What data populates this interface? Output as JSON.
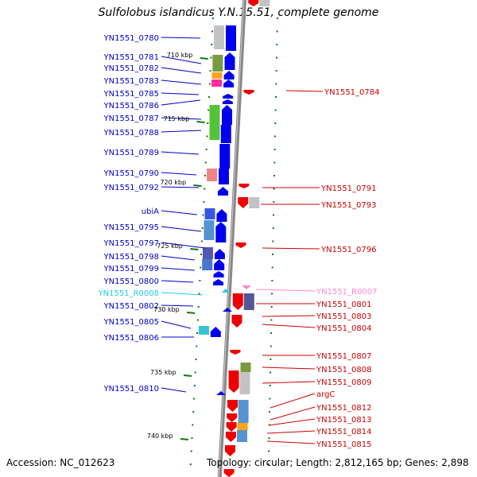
{
  "title": "Sulfolobus islandicus Y.N.15.51, complete genome",
  "footer": {
    "accession": "Accession: NC_012623",
    "topology": "Topology: circular; Length: 2,812,165 bp; Genes: 2,898"
  },
  "colors": {
    "forward_label": "#0000cc",
    "reverse_label": "#cc0000",
    "forward_gene": "#0000ee",
    "reverse_gene": "#ee0000",
    "rna_forward": "#22ccee",
    "rna_reverse": "#ff88cc",
    "backbone": "#888888",
    "tick": "#117711"
  },
  "kbp_ticks": [
    "710 kbp",
    "715 kbp",
    "720 kbp",
    "725 kbp",
    "730 kbp",
    "735 kbp",
    "740 kbp"
  ],
  "left_genes": [
    "YN1551_0780",
    "YN1551_0781",
    "YN1551_0782",
    "YN1551_0783",
    "YN1551_0785",
    "YN1551_0786",
    "YN1551_0787",
    "YN1551_0788",
    "YN1551_0789",
    "YN1551_0790",
    "YN1551_0792",
    "ubiA",
    "YN1551_0795",
    "YN1551_0797",
    "YN1551_0798",
    "YN1551_0799",
    "YN1551_0800",
    "YN1551_R0008",
    "YN1551_0802",
    "YN1551_0805",
    "YN1551_0806",
    "YN1551_0810"
  ],
  "right_genes": [
    "YN1551_0784",
    "YN1551_0791",
    "YN1551_0793",
    "YN1551_0796",
    "YN1551_R0007",
    "YN1551_0801",
    "YN1551_0803",
    "YN1551_0804",
    "YN1551_0807",
    "YN1551_0808",
    "YN1551_0809",
    "argC",
    "YN1551_0812",
    "YN1551_0813",
    "YN1551_0814",
    "YN1551_0815"
  ]
}
